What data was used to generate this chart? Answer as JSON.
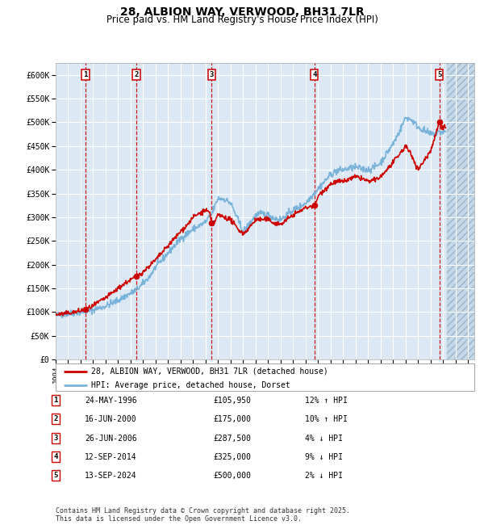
{
  "title": "28, ALBION WAY, VERWOOD, BH31 7LR",
  "subtitle": "Price paid vs. HM Land Registry's House Price Index (HPI)",
  "background_color": "#dce9f5",
  "plot_bg_color": "#dce9f5",
  "grid_color": "#ffffff",
  "hpi_line_color": "#7ab3d9",
  "price_line_color": "#cc0000",
  "sale_marker_color": "#cc0000",
  "dashed_line_color": "#cc0000",
  "ylim": [
    0,
    625000
  ],
  "yticks": [
    0,
    50000,
    100000,
    150000,
    200000,
    250000,
    300000,
    350000,
    400000,
    450000,
    500000,
    550000,
    600000
  ],
  "ytick_labels": [
    "£0",
    "£50K",
    "£100K",
    "£150K",
    "£200K",
    "£250K",
    "£300K",
    "£350K",
    "£400K",
    "£450K",
    "£500K",
    "£550K",
    "£600K"
  ],
  "xlim_start": 1994.0,
  "xlim_end": 2027.5,
  "xtick_years": [
    1994,
    1995,
    1996,
    1997,
    1998,
    1999,
    2000,
    2001,
    2002,
    2003,
    2004,
    2005,
    2006,
    2007,
    2008,
    2009,
    2010,
    2011,
    2012,
    2013,
    2014,
    2015,
    2016,
    2017,
    2018,
    2019,
    2020,
    2021,
    2022,
    2023,
    2024,
    2025,
    2026,
    2027
  ],
  "sale_events": [
    {
      "num": 1,
      "year": 1996.39,
      "price": 105950,
      "date": "24-MAY-1996",
      "pct": "12% ↑ HPI"
    },
    {
      "num": 2,
      "year": 2000.46,
      "price": 175000,
      "date": "16-JUN-2000",
      "pct": "10% ↑ HPI"
    },
    {
      "num": 3,
      "year": 2006.48,
      "price": 287500,
      "date": "26-JUN-2006",
      "pct": "4% ↓ HPI"
    },
    {
      "num": 4,
      "year": 2014.7,
      "price": 325000,
      "date": "12-SEP-2014",
      "pct": "9% ↓ HPI"
    },
    {
      "num": 5,
      "year": 2024.7,
      "price": 500000,
      "date": "13-SEP-2024",
      "pct": "2% ↓ HPI"
    }
  ],
  "legend_entries": [
    "28, ALBION WAY, VERWOOD, BH31 7LR (detached house)",
    "HPI: Average price, detached house, Dorset"
  ],
  "footer": "Contains HM Land Registry data © Crown copyright and database right 2025.\nThis data is licensed under the Open Government Licence v3.0.",
  "table_rows": [
    [
      "1",
      "24-MAY-1996",
      "£105,950",
      "12% ↑ HPI"
    ],
    [
      "2",
      "16-JUN-2000",
      "£175,000",
      "10% ↑ HPI"
    ],
    [
      "3",
      "26-JUN-2006",
      "£287,500",
      "4% ↓ HPI"
    ],
    [
      "4",
      "12-SEP-2014",
      "£325,000",
      "9% ↓ HPI"
    ],
    [
      "5",
      "13-SEP-2024",
      "£500,000",
      "2% ↓ HPI"
    ]
  ]
}
